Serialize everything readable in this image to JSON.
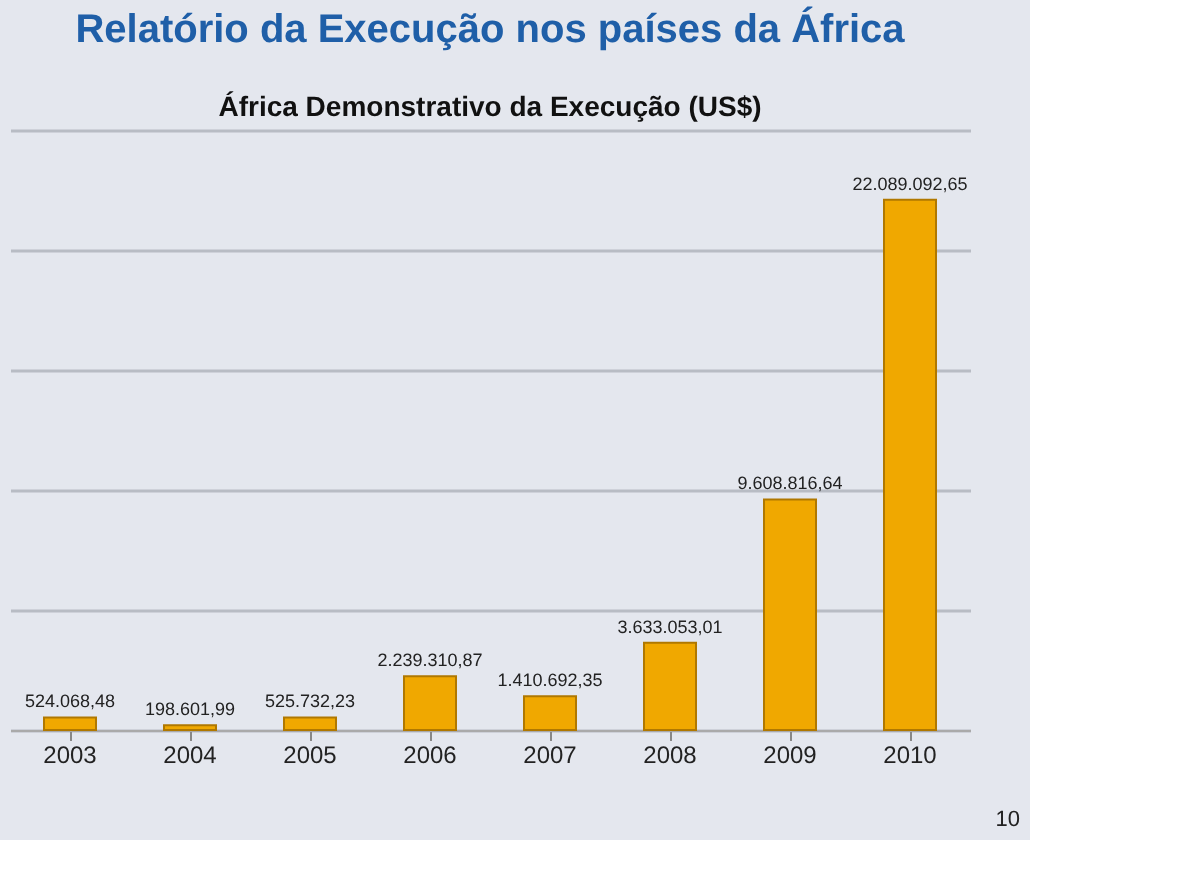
{
  "chart_data": {
    "type": "bar",
    "title": "Relatório da Execução nos países da África",
    "subtitle": "África Demonstrativo da Execução (US$)",
    "categories": [
      "2003",
      "2004",
      "2005",
      "2006",
      "2007",
      "2008",
      "2009",
      "2010"
    ],
    "values": [
      524068.48,
      198601.99,
      525732.23,
      2239310.87,
      1410692.35,
      3633053.01,
      9608816.64,
      22089092.65
    ],
    "value_labels": [
      "524.068,48",
      "198.601,99",
      "525.732,23",
      "2.239.310,87",
      "1.410.692,35",
      "3.633.053,01",
      "9.608.816,64",
      "22.089.092,65"
    ],
    "color": "#f0a800",
    "ylim": [
      0,
      25000000
    ],
    "yticks": [
      {
        "value": 0,
        "label": null
      },
      {
        "value": 5000000,
        "label": null
      },
      {
        "value": 10000000,
        "label": null
      },
      {
        "value": 15000000,
        "label": null
      },
      {
        "value": 20000000,
        "label": null
      },
      {
        "value": 25000000,
        "label": null
      }
    ],
    "grid": "y",
    "tick_labels": "x",
    "annotations": [
      "10"
    ]
  }
}
